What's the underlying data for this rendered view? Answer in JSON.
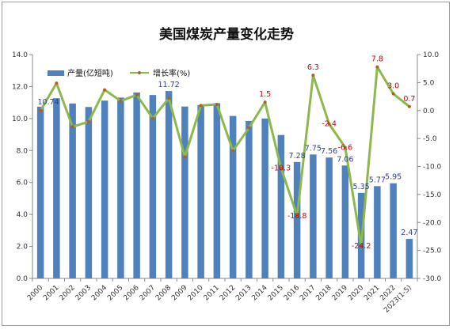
{
  "chart_data": {
    "type": "bar+line",
    "title": "美国煤炭产量变化走势",
    "categories": [
      "2000",
      "2001",
      "2002",
      "2003",
      "2004",
      "2005",
      "2006",
      "2007",
      "2008",
      "2009",
      "2010",
      "2011",
      "2012",
      "2013",
      "2014",
      "2015",
      "2016",
      "2017",
      "2018",
      "2019",
      "2020",
      "2021",
      "2022",
      "2023(1-5)"
    ],
    "series": [
      {
        "name": "产量(亿短吨)",
        "type": "bar",
        "axis": "left",
        "color": "#4f81bd",
        "values": [
          10.74,
          11.27,
          10.94,
          10.72,
          11.12,
          11.31,
          11.63,
          11.47,
          11.72,
          10.75,
          10.84,
          10.96,
          10.16,
          9.85,
          10.0,
          8.97,
          7.28,
          7.75,
          7.56,
          7.06,
          5.35,
          5.77,
          5.95,
          2.47
        ],
        "labels": [
          "10.74",
          "",
          "",
          "",
          "",
          "",
          "",
          "",
          "11.72",
          "",
          "",
          "",
          "",
          "",
          "",
          "",
          "7.28",
          "7.75",
          "7.56",
          "7.06",
          "5.35",
          "5.77",
          "5.95",
          "2.47"
        ]
      },
      {
        "name": "增长率(%)",
        "type": "line",
        "axis": "right",
        "color": "#8cb84c",
        "values": [
          0.0,
          4.9,
          -2.9,
          -2.0,
          3.7,
          1.7,
          2.8,
          -1.4,
          2.2,
          -8.3,
          0.9,
          1.1,
          -7.2,
          -3.1,
          1.5,
          -10.3,
          -18.8,
          6.3,
          -2.4,
          -6.6,
          -24.2,
          7.8,
          3.0,
          0.7
        ],
        "labels": [
          "",
          "",
          "",
          "",
          "",
          "",
          "",
          "",
          "",
          "",
          "",
          "",
          "",
          "",
          "1.5",
          "-10.3",
          "-18.8",
          "6.3",
          "-2.4",
          "-6.6",
          "-24.2",
          "7.8",
          "3.0",
          "0.7"
        ]
      }
    ],
    "y_left": {
      "min": 0,
      "max": 14,
      "step": 2,
      "tick_labels": [
        "0.0",
        "2.0",
        "4.0",
        "6.0",
        "8.0",
        "10.0",
        "12.0",
        "14.0"
      ]
    },
    "y_right": {
      "min": -30,
      "max": 10,
      "step": 5,
      "tick_labels": [
        "-30.0",
        "-25.0",
        "-20.0",
        "-15.0",
        "-10.0",
        "-5.0",
        "0.0",
        "5.0",
        "10.0"
      ]
    },
    "legend_position": "top-left",
    "grid": false
  }
}
